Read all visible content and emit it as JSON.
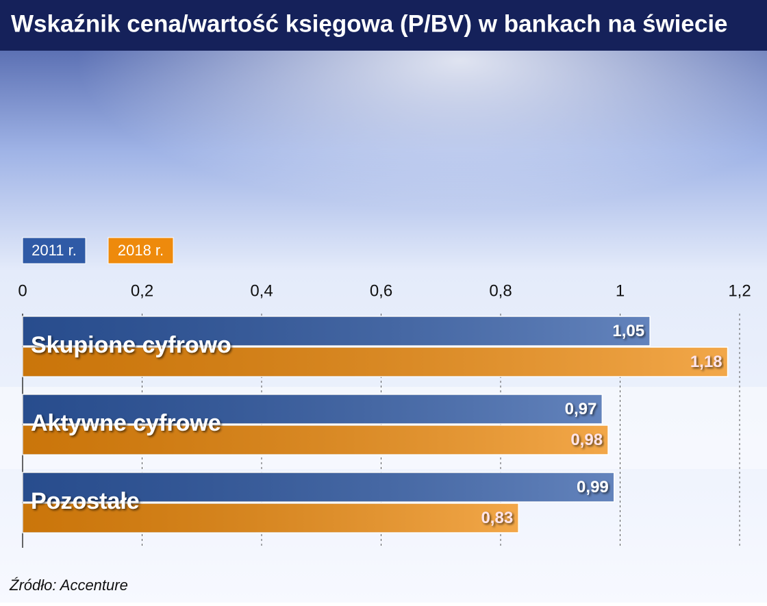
{
  "chart_data": {
    "type": "barh",
    "title": "Wskaźnik cena/wartość księgowa (P/BV) w bankach na świecie",
    "categories": [
      "Skupione cyfrowo",
      "Aktywne cyfrowe",
      "Pozostałe"
    ],
    "series": [
      {
        "name": "2011 r.",
        "color": "#2f5aa6",
        "values": [
          1.05,
          0.97,
          0.99
        ],
        "value_labels": [
          "1,05",
          "0,97",
          "0,99"
        ]
      },
      {
        "name": "2018 r.",
        "color": "#ee8a0c",
        "values": [
          1.18,
          0.98,
          0.83
        ],
        "value_labels": [
          "1,18",
          "0,98",
          "0,83"
        ]
      }
    ],
    "xlim": [
      0,
      1.2
    ],
    "xticks": [
      0,
      {
        "value": 0.2,
        "label": "0,2"
      },
      {
        "value": 0.4,
        "label": "0,4"
      },
      {
        "value": 0.6,
        "label": "0,6"
      },
      {
        "value": 0.8,
        "label": "0,8"
      },
      1,
      {
        "value": 1.2,
        "label": "1,2"
      }
    ],
    "grid": true,
    "source": "Źródło: Accenture"
  }
}
